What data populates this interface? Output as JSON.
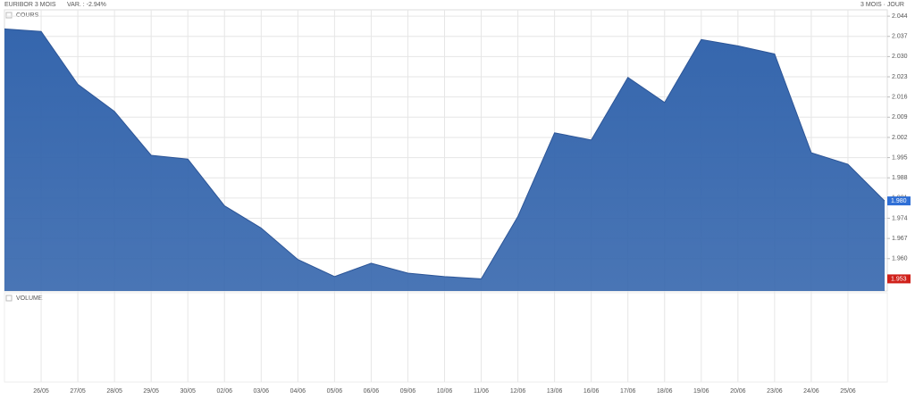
{
  "chart_data": {
    "type": "area",
    "title": "EURIBOR 3 MOIS",
    "subtitle": "VAR. : -2.94%",
    "period": "3 MOIS · JOUR",
    "panel_labels": [
      "COURS",
      "VOLUME"
    ],
    "color": "#3566ad",
    "grid": true,
    "categories": [
      null,
      "26/05",
      "27/05",
      "28/05",
      "29/05",
      "30/05",
      "02/06",
      "03/06",
      "04/06",
      "05/06",
      "06/06",
      "09/06",
      "10/06",
      "11/06",
      "12/06",
      "13/06",
      "16/06",
      "17/06",
      "18/06",
      "19/06",
      "20/06",
      "23/06",
      "24/06",
      "25/06",
      null
    ],
    "values": [
      2.0396,
      2.0387,
      2.0204,
      2.011,
      1.9958,
      1.9945,
      1.9783,
      1.9706,
      1.9597,
      1.9538,
      1.9584,
      1.955,
      1.9538,
      1.953,
      1.9746,
      2.0036,
      2.0011,
      2.0228,
      2.0141,
      2.0359,
      2.0337,
      2.0309,
      1.9967,
      1.9927,
      1.98
    ],
    "ylim": [
      1.9488,
      2.0462
    ],
    "yticks": [
      2.044,
      2.037,
      {
        "value": 2.03,
        "label": "2.030"
      },
      2.023,
      2.016,
      2.009,
      2.002,
      1.995,
      1.988,
      1.981,
      1.974,
      1.967,
      {
        "value": 1.96,
        "label": "1.960"
      }
    ],
    "markers": [
      {
        "value": 1.98,
        "label": "1.980",
        "color": "#2f6fd6"
      },
      {
        "value": 1.953,
        "label": "1.953",
        "color": "#d0211b"
      }
    ]
  }
}
